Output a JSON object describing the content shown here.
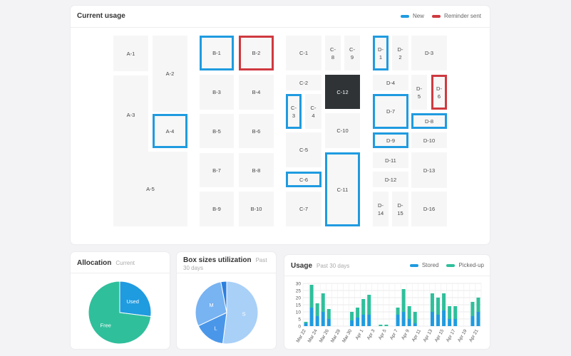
{
  "current_usage": {
    "title": "Current usage",
    "legend": [
      {
        "label": "New",
        "color": "#1f9be0"
      },
      {
        "label": "Reminder sent",
        "color": "#cf3940"
      }
    ],
    "boxes": [
      {
        "id": "A-1",
        "label": "A-1",
        "state": ""
      },
      {
        "id": "A-2",
        "label": "A-2",
        "state": ""
      },
      {
        "id": "A-3",
        "label": "A-3",
        "state": ""
      },
      {
        "id": "A-4",
        "label": "A-4",
        "state": "new"
      },
      {
        "id": "A-5",
        "label": "A-5",
        "state": ""
      },
      {
        "id": "B-1",
        "label": "B-1",
        "state": "new"
      },
      {
        "id": "B-2",
        "label": "B-2",
        "state": "reminder"
      },
      {
        "id": "B-3",
        "label": "B-3",
        "state": ""
      },
      {
        "id": "B-4",
        "label": "B-4",
        "state": ""
      },
      {
        "id": "B-5",
        "label": "B-5",
        "state": ""
      },
      {
        "id": "B-6",
        "label": "B-6",
        "state": ""
      },
      {
        "id": "B-7",
        "label": "B-7",
        "state": ""
      },
      {
        "id": "B-8",
        "label": "B-8",
        "state": ""
      },
      {
        "id": "B-9",
        "label": "B-9",
        "state": ""
      },
      {
        "id": "B-10",
        "label": "B-10",
        "state": ""
      },
      {
        "id": "C-1",
        "label": "C-1",
        "state": ""
      },
      {
        "id": "C-8",
        "label": "C-\n8",
        "state": ""
      },
      {
        "id": "C-9",
        "label": "C-\n9",
        "state": ""
      },
      {
        "id": "C-2",
        "label": "C-2",
        "state": ""
      },
      {
        "id": "C-12",
        "label": "C-12",
        "state": "occupied"
      },
      {
        "id": "C-3",
        "label": "C-\n3",
        "state": "new"
      },
      {
        "id": "C-4",
        "label": "C-\n4",
        "state": ""
      },
      {
        "id": "C-10",
        "label": "C-10",
        "state": ""
      },
      {
        "id": "C-5",
        "label": "C-5",
        "state": ""
      },
      {
        "id": "C-6",
        "label": "C-6",
        "state": "new"
      },
      {
        "id": "C-11",
        "label": "C-11",
        "state": "new"
      },
      {
        "id": "C-7",
        "label": "C-7",
        "state": ""
      },
      {
        "id": "D-1",
        "label": "D-\n1",
        "state": "new"
      },
      {
        "id": "D-2",
        "label": "D-\n2",
        "state": ""
      },
      {
        "id": "D-3",
        "label": "D-3",
        "state": ""
      },
      {
        "id": "D-4",
        "label": "D-4",
        "state": ""
      },
      {
        "id": "D-5",
        "label": "D-\n5",
        "state": ""
      },
      {
        "id": "D-6",
        "label": "D-\n6",
        "state": "reminder"
      },
      {
        "id": "D-7",
        "label": "D-7",
        "state": "new"
      },
      {
        "id": "D-8",
        "label": "D-8",
        "state": "new"
      },
      {
        "id": "D-9",
        "label": "D-9",
        "state": "new"
      },
      {
        "id": "D-10",
        "label": "D-10",
        "state": ""
      },
      {
        "id": "D-11",
        "label": "D-11",
        "state": ""
      },
      {
        "id": "D-12",
        "label": "D-12",
        "state": ""
      },
      {
        "id": "D-13",
        "label": "D-13",
        "state": ""
      },
      {
        "id": "D-14",
        "label": "D-\n14",
        "state": ""
      },
      {
        "id": "D-15",
        "label": "D-\n15",
        "state": ""
      },
      {
        "id": "D-16",
        "label": "D-16",
        "state": ""
      }
    ]
  },
  "allocation": {
    "title": "Allocation",
    "subtitle": "Current",
    "slices": [
      {
        "label": "Used",
        "value": 27,
        "color": "#1f9be0"
      },
      {
        "label": "Free",
        "value": 73,
        "color": "#2fbf9b"
      }
    ]
  },
  "box_sizes": {
    "title": "Box sizes utilization",
    "subtitle": "Past 30 days",
    "slices": [
      {
        "label": "S",
        "value": 52,
        "color": "#a9d0f7"
      },
      {
        "label": "L",
        "value": 16,
        "color": "#4a97ea"
      },
      {
        "label": "M",
        "value": 29,
        "color": "#78b3f2"
      },
      {
        "label": "",
        "value": 3,
        "color": "#2b7fde"
      }
    ]
  },
  "usage": {
    "title": "Usage",
    "subtitle": "Past 30 days",
    "legend": [
      {
        "label": "Stored",
        "color": "#1f9be0"
      },
      {
        "label": "Picked-up",
        "color": "#2fbf9b"
      }
    ]
  },
  "chart_data": {
    "type": "bar",
    "stacked": true,
    "categories": [
      "Mar 22",
      "Mar 23",
      "Mar 24",
      "Mar 25",
      "Mar 26",
      "Mar 27",
      "Mar 28",
      "Mar 29",
      "Mar 30",
      "Mar 31",
      "Apr 1",
      "Apr 2",
      "Apr 3",
      "Apr 4",
      "Apr 5",
      "Apr 6",
      "Apr 7",
      "Apr 8",
      "Apr 9",
      "Apr 10",
      "Apr 11",
      "Apr 12",
      "Apr 13",
      "Apr 14",
      "Apr 15",
      "Apr 16",
      "Apr 17",
      "Apr 18",
      "Apr 19",
      "Apr 20",
      "Apr 21"
    ],
    "tick_labels": [
      "Mar 22",
      "Mar 24",
      "Mar 26",
      "Mar 28",
      "Mar 30",
      "Apr 1",
      "Apr 3",
      "Apr 5",
      "Apr 7",
      "Apr 9",
      "Apr 11",
      "Apr 13",
      "Apr 15",
      "Apr 17",
      "Apr 19",
      "Apr 21"
    ],
    "series": [
      {
        "name": "Stored",
        "values": [
          2,
          13,
          7,
          10,
          5,
          0,
          0,
          0,
          4,
          6,
          8,
          8,
          0,
          0,
          0,
          0,
          8,
          10,
          5,
          2,
          0,
          0,
          10,
          8,
          11,
          5,
          5,
          0,
          0,
          7,
          10
        ]
      },
      {
        "name": "Picked-up",
        "values": [
          1,
          16,
          9,
          13,
          7,
          0,
          0,
          0,
          6,
          7,
          11,
          14,
          0,
          1,
          1,
          0,
          5,
          16,
          9,
          8,
          0,
          0,
          13,
          12,
          12,
          9,
          9,
          0,
          0,
          10,
          10
        ]
      }
    ],
    "ylim": [
      0,
      30
    ],
    "yticks": [
      0,
      5,
      10,
      15,
      20,
      25,
      30
    ],
    "grid": true,
    "legend_position": "top-right"
  }
}
